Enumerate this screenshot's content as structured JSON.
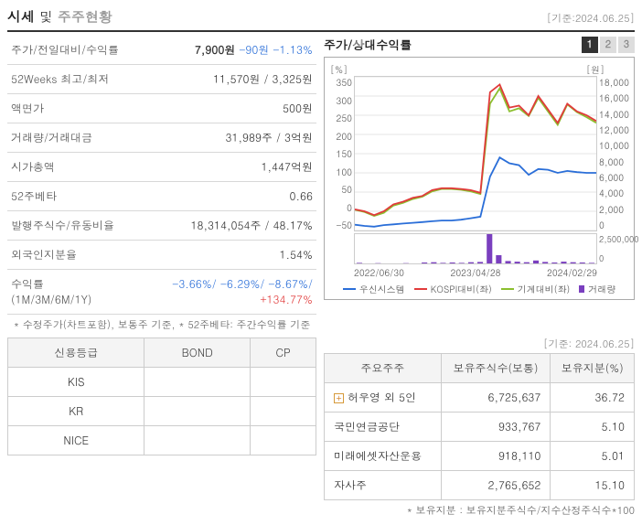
{
  "header": {
    "title_dark": "시세",
    "title_and": " 및 ",
    "title_gray": "주주현황",
    "as_of": "[기준:2024.06.25]"
  },
  "stats": {
    "r0_label": "주가/전일대비/수익률",
    "r0_price": "7,900원",
    "r0_diff": "-90원",
    "r0_ret": "-1.13%",
    "r1_label": "52Weeks 최고/최저",
    "r1_val": "11,570원 / 3,325원",
    "r2_label": "액면가",
    "r2_val": "500원",
    "r3_label": "거래량/거래대금",
    "r3_val": "31,989주 / 3억원",
    "r4_label": "시가총액",
    "r4_val": "1,447억원",
    "r5_label": "52주베타",
    "r5_val": "0.66",
    "r6_label": "발행주식수/유동비율",
    "r6_val": "18,314,054주 / 48.17%",
    "r7_label": "외국인지분율",
    "r7_val": "1.54%",
    "r8_label": "수익률 (1M/3M/6M/1Y)",
    "r8_a": "-3.66%/",
    "r8_b": "-6.29%/",
    "r8_c": "-8.67%/",
    "r8_d": "+134.77%",
    "foot": "* 수정주가(차트포함), 보통주 기준, * 52주베타: 주간수익률 기준"
  },
  "chart": {
    "title": "주가/상대수익률",
    "tabs": {
      "t1": "1",
      "t2": "2",
      "t3": "3"
    },
    "unit_left": "[%]",
    "unit_right": "[원]",
    "yticks_left": [
      "350",
      "300",
      "250",
      "200",
      "150",
      "100",
      "50",
      "0",
      "-50"
    ],
    "yticks_right": [
      "18,000",
      "16,000",
      "14,000",
      "12,000",
      "10,000",
      "8,000",
      "6,000",
      "4,000",
      "2,000",
      "0"
    ],
    "vol_ticks": [
      "2,500,000",
      "0"
    ],
    "xlabels": [
      "2022/06/30",
      "2023/04/28",
      "2024/02/29"
    ],
    "legend": {
      "s1": "우신시스템",
      "c1": "#2a6ed8",
      "s2": "KOSPI대비(좌)",
      "c2": "#e13b3b",
      "s3": "기계대비(좌)",
      "c3": "#8bbf2e",
      "s4": "거래량",
      "c4": "#7a3fbf"
    },
    "series": {
      "blue": [
        -35,
        -38,
        -40,
        -36,
        -34,
        -32,
        -30,
        -28,
        -26,
        -24,
        -24,
        -22,
        -18,
        -14,
        90,
        140,
        125,
        120,
        95,
        110,
        108,
        100,
        105,
        102,
        100,
        100
      ],
      "red": [
        5,
        0,
        -10,
        0,
        18,
        25,
        35,
        40,
        55,
        60,
        60,
        58,
        55,
        48,
        310,
        330,
        270,
        275,
        250,
        300,
        265,
        230,
        280,
        260,
        250,
        235
      ],
      "green": [
        4,
        -2,
        -12,
        -4,
        15,
        22,
        32,
        38,
        52,
        58,
        58,
        56,
        52,
        45,
        280,
        320,
        260,
        268,
        248,
        295,
        260,
        225,
        278,
        258,
        245,
        230
      ],
      "volume": [
        2,
        0,
        1,
        0,
        0,
        1,
        0,
        3,
        4,
        2,
        3,
        2,
        4,
        5,
        100,
        28,
        8,
        6,
        4,
        10,
        5,
        3,
        6,
        4,
        3,
        2
      ]
    },
    "ylim_left": {
      "min": -50,
      "max": 350
    },
    "colors": {
      "grid": "#cccccc",
      "bg": "#ffffff"
    }
  },
  "as_of_right": "[기준: 2024.06.25]",
  "credit": {
    "headers": {
      "h0": "신용등급",
      "h1": "BOND",
      "h2": "CP"
    },
    "rows": [
      {
        "name": "KIS",
        "bond": "",
        "cp": ""
      },
      {
        "name": "KR",
        "bond": "",
        "cp": ""
      },
      {
        "name": "NICE",
        "bond": "",
        "cp": ""
      }
    ]
  },
  "shareholders": {
    "headers": {
      "h0": "주요주주",
      "h1": "보유주식수(보통)",
      "h2": "보유지분(%)"
    },
    "rows": [
      {
        "expand": true,
        "name": "허우영 외 5인",
        "shares": "6,725,637",
        "pct": "36.72"
      },
      {
        "expand": false,
        "name": "국민연금공단",
        "shares": "933,767",
        "pct": "5.10"
      },
      {
        "expand": false,
        "name": "미래에셋자산운용",
        "shares": "918,110",
        "pct": "5.01"
      },
      {
        "expand": false,
        "name": "자사주",
        "shares": "2,765,652",
        "pct": "15.10"
      }
    ],
    "foot": "* 보유지분 : 보유지분주식수/지수산정주식수*100"
  }
}
